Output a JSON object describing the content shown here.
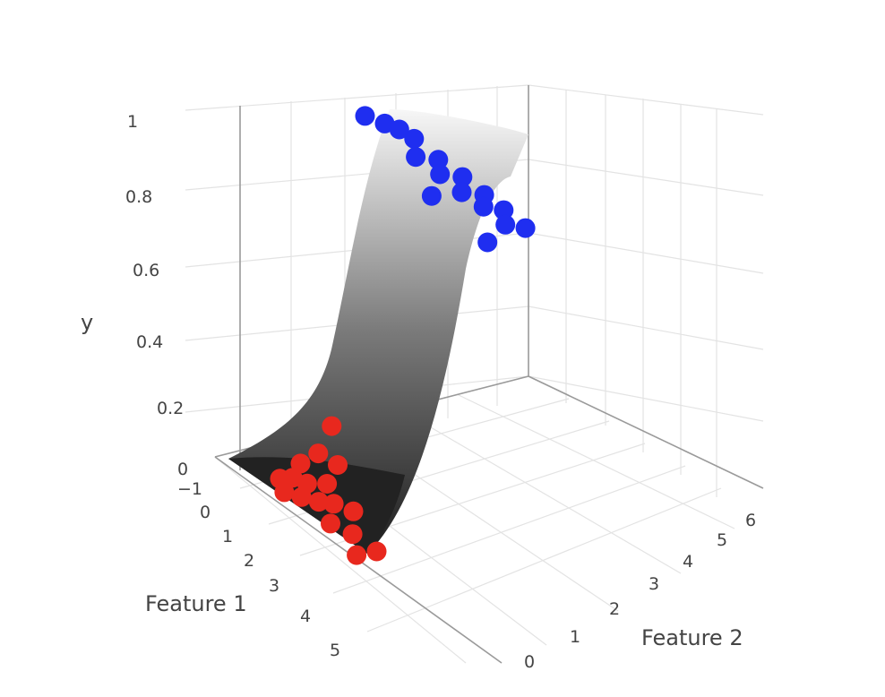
{
  "chart_data": {
    "type": "scatter",
    "xlabel": "Feature 1",
    "ylabel": "Feature 2",
    "zlabel": "y",
    "x_ticks": [
      "−1",
      "0",
      "1",
      "2",
      "3",
      "4",
      "5"
    ],
    "y_ticks": [
      "0",
      "1",
      "2",
      "3",
      "4",
      "5",
      "6"
    ],
    "z_ticks": [
      "0",
      "0.2",
      "0.4",
      "0.6",
      "0.8",
      "1"
    ],
    "surface": {
      "description_colors": [
        "#1e1e1e",
        "#f7f7f7"
      ]
    },
    "series": [
      {
        "color": "#e8281e",
        "points": [
          {
            "x": 0.1,
            "y": 0.6,
            "z": 0.02
          },
          {
            "x": 0.3,
            "y": 0.9,
            "z": 0.03
          },
          {
            "x": 0.5,
            "y": 0.4,
            "z": 0.02
          },
          {
            "x": 0.2,
            "y": 1.3,
            "z": 0.05
          },
          {
            "x": 0.7,
            "y": 1.1,
            "z": 0.04
          },
          {
            "x": 0.9,
            "y": 0.7,
            "z": 0.03
          },
          {
            "x": 1.1,
            "y": 1.5,
            "z": 0.06
          },
          {
            "x": 1.3,
            "y": 1.0,
            "z": 0.04
          },
          {
            "x": 1.6,
            "y": 1.3,
            "z": 0.05
          },
          {
            "x": 1.9,
            "y": 0.9,
            "z": 0.03
          },
          {
            "x": 2.1,
            "y": 1.6,
            "z": 0.06
          },
          {
            "x": 2.5,
            "y": 1.2,
            "z": 0.04
          },
          {
            "x": 0.4,
            "y": 1.8,
            "z": 0.08
          },
          {
            "x": 1.0,
            "y": 2.0,
            "z": 0.09
          },
          {
            "x": 3.0,
            "y": 0.9,
            "z": 0.03
          },
          {
            "x": 3.3,
            "y": 1.4,
            "z": 0.05
          },
          {
            "x": 0.2,
            "y": 2.5,
            "z": 0.12
          }
        ]
      },
      {
        "color": "#1f2ef0",
        "points": [
          {
            "x": 0.4,
            "y": 3.6,
            "z": 0.97
          },
          {
            "x": 0.9,
            "y": 3.9,
            "z": 0.98
          },
          {
            "x": 1.3,
            "y": 4.1,
            "z": 0.99
          },
          {
            "x": 1.7,
            "y": 4.3,
            "z": 0.99
          },
          {
            "x": 2.1,
            "y": 4.0,
            "z": 0.98
          },
          {
            "x": 2.5,
            "y": 4.5,
            "z": 0.99
          },
          {
            "x": 2.9,
            "y": 4.2,
            "z": 0.99
          },
          {
            "x": 3.3,
            "y": 4.7,
            "z": 1.0
          },
          {
            "x": 3.6,
            "y": 4.4,
            "z": 0.99
          },
          {
            "x": 4.0,
            "y": 4.9,
            "z": 1.0
          },
          {
            "x": 4.3,
            "y": 4.6,
            "z": 1.0
          },
          {
            "x": 4.6,
            "y": 5.1,
            "z": 1.0
          },
          {
            "x": 5.0,
            "y": 4.8,
            "z": 1.0
          },
          {
            "x": 5.3,
            "y": 5.3,
            "z": 1.0
          },
          {
            "x": 3.1,
            "y": 3.7,
            "z": 0.96
          },
          {
            "x": 4.9,
            "y": 4.2,
            "z": 0.96
          }
        ]
      }
    ],
    "grid": true
  }
}
